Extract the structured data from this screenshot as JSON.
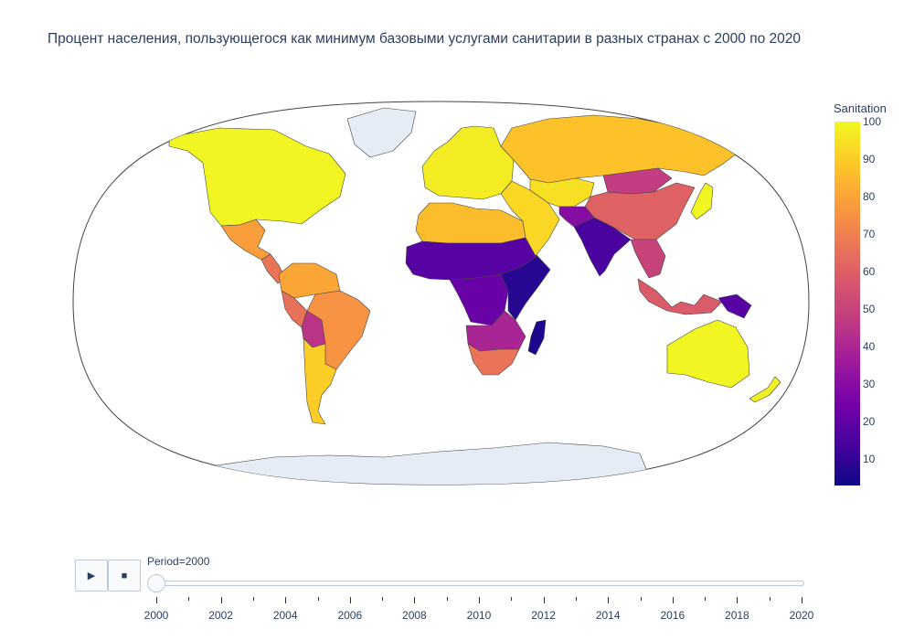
{
  "title": "Процент населения, пользующегося как минимум базовыми услугами санитарии в разных странах с 2000 по 2020",
  "colorbar": {
    "title": "Sanitation",
    "ticks": [
      "100",
      "90",
      "80",
      "70",
      "60",
      "50",
      "40",
      "30",
      "20",
      "10"
    ],
    "scale": [
      "#0d0887",
      "#46039f",
      "#7201a8",
      "#9c179e",
      "#bd3786",
      "#d8576b",
      "#ed7953",
      "#fb9f3a",
      "#fdca26",
      "#f0f921"
    ],
    "range": [
      3,
      100
    ]
  },
  "map": {
    "projection": "natural earth",
    "land_no_data_color": "#e5ecf6",
    "border_color": "#444444",
    "regions": [
      {
        "name": "North America",
        "value": 99
      },
      {
        "name": "Greenland",
        "value": null
      },
      {
        "name": "Mexico",
        "value": 78
      },
      {
        "name": "Central America",
        "value": 66
      },
      {
        "name": "South America North",
        "value": 80
      },
      {
        "name": "Brazil",
        "value": 75
      },
      {
        "name": "Peru",
        "value": 65
      },
      {
        "name": "Bolivia",
        "value": 45
      },
      {
        "name": "Southern Cone",
        "value": 90
      },
      {
        "name": "Europe",
        "value": 97
      },
      {
        "name": "Russia",
        "value": 87
      },
      {
        "name": "North Africa",
        "value": 86
      },
      {
        "name": "Sahel",
        "value": 18
      },
      {
        "name": "Central Africa",
        "value": 22
      },
      {
        "name": "East Africa",
        "value": 8
      },
      {
        "name": "Southern Africa",
        "value": 40
      },
      {
        "name": "South Africa",
        "value": 66
      },
      {
        "name": "Madagascar",
        "value": 6
      },
      {
        "name": "Middle East",
        "value": 92
      },
      {
        "name": "Central Asia",
        "value": 94
      },
      {
        "name": "China",
        "value": 60
      },
      {
        "name": "Mongolia",
        "value": 48
      },
      {
        "name": "India",
        "value": 15
      },
      {
        "name": "Pakistan",
        "value": 30
      },
      {
        "name": "Southeast Asia",
        "value": 50
      },
      {
        "name": "Indonesia",
        "value": 58
      },
      {
        "name": "Papua New Guinea",
        "value": 18
      },
      {
        "name": "Japan",
        "value": 99
      },
      {
        "name": "Australia",
        "value": 99
      },
      {
        "name": "New Zealand",
        "value": 98
      },
      {
        "name": "Antarctica",
        "value": null
      }
    ]
  },
  "animation": {
    "play_icon": "▶",
    "stop_icon": "■",
    "current_label": "Period=2000",
    "current_value": 2000,
    "min": 2000,
    "max": 2020,
    "tick_labels": [
      "2000",
      "2002",
      "2004",
      "2006",
      "2008",
      "2010",
      "2012",
      "2014",
      "2016",
      "2018",
      "2020"
    ]
  }
}
